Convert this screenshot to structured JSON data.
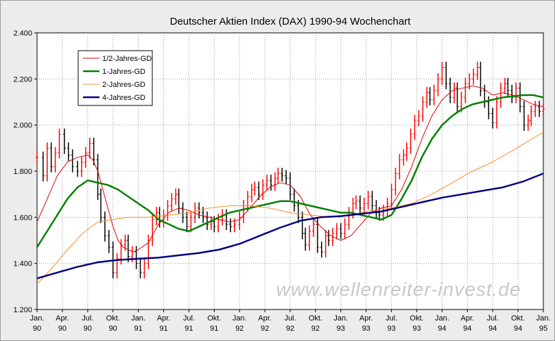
{
  "chart_data": {
    "type": "line",
    "title": "Deutscher Aktien Index (DAX) 1990-94 Wochenchart",
    "watermark": "www.wellenreiter-invest.de",
    "xlabel": "",
    "ylabel": "",
    "ylim": [
      1200,
      2400
    ],
    "yticks": [
      1200,
      1400,
      1600,
      1800,
      2000,
      2200,
      2400
    ],
    "ytick_labels": [
      "1.200",
      "1.400",
      "1.600",
      "1.800",
      "2.000",
      "2.200",
      "2.400"
    ],
    "xlim": [
      1990.0,
      1995.0
    ],
    "xticks": [
      {
        "x": 1990.0,
        "month": "Jan.",
        "year": "90"
      },
      {
        "x": 1990.25,
        "month": "Apr.",
        "year": "90"
      },
      {
        "x": 1990.5,
        "month": "Jul.",
        "year": "90"
      },
      {
        "x": 1990.75,
        "month": "Okt.",
        "year": "90"
      },
      {
        "x": 1991.0,
        "month": "Jan.",
        "year": "91"
      },
      {
        "x": 1991.25,
        "month": "Apr.",
        "year": "91"
      },
      {
        "x": 1991.5,
        "month": "Jul.",
        "year": "91"
      },
      {
        "x": 1991.75,
        "month": "Okt.",
        "year": "91"
      },
      {
        "x": 1992.0,
        "month": "Jan.",
        "year": "92"
      },
      {
        "x": 1992.25,
        "month": "Apr.",
        "year": "92"
      },
      {
        "x": 1992.5,
        "month": "Jul.",
        "year": "92"
      },
      {
        "x": 1992.75,
        "month": "Okt.",
        "year": "92"
      },
      {
        "x": 1993.0,
        "month": "Jan.",
        "year": "93"
      },
      {
        "x": 1993.25,
        "month": "Apr.",
        "year": "93"
      },
      {
        "x": 1993.5,
        "month": "Jul.",
        "year": "93"
      },
      {
        "x": 1993.75,
        "month": "Okt.",
        "year": "93"
      },
      {
        "x": 1994.0,
        "month": "Jan.",
        "year": "94"
      },
      {
        "x": 1994.25,
        "month": "Apr.",
        "year": "94"
      },
      {
        "x": 1994.5,
        "month": "Jul.",
        "year": "94"
      },
      {
        "x": 1994.75,
        "month": "Okt.",
        "year": "94"
      },
      {
        "x": 1995.0,
        "month": "Jan.",
        "year": "95"
      }
    ],
    "grid": true,
    "legend_position": "top-left",
    "price_colors": {
      "up": "#ff0000",
      "down": "#000000"
    },
    "price_series": [
      [
        1990.0,
        1860
      ],
      [
        1990.06,
        1780
      ],
      [
        1990.1,
        1900
      ],
      [
        1990.14,
        1820
      ],
      [
        1990.18,
        1880
      ],
      [
        1990.22,
        1960
      ],
      [
        1990.27,
        1900
      ],
      [
        1990.31,
        1870
      ],
      [
        1990.35,
        1820
      ],
      [
        1990.4,
        1800
      ],
      [
        1990.44,
        1840
      ],
      [
        1990.48,
        1880
      ],
      [
        1990.52,
        1920
      ],
      [
        1990.56,
        1850
      ],
      [
        1990.6,
        1700
      ],
      [
        1990.63,
        1600
      ],
      [
        1990.67,
        1520
      ],
      [
        1990.71,
        1470
      ],
      [
        1990.75,
        1360
      ],
      [
        1990.79,
        1420
      ],
      [
        1990.83,
        1480
      ],
      [
        1990.87,
        1500
      ],
      [
        1990.9,
        1430
      ],
      [
        1990.94,
        1450
      ],
      [
        1990.98,
        1400
      ],
      [
        1991.02,
        1360
      ],
      [
        1991.06,
        1400
      ],
      [
        1991.1,
        1500
      ],
      [
        1991.14,
        1590
      ],
      [
        1991.18,
        1620
      ],
      [
        1991.21,
        1580
      ],
      [
        1991.25,
        1610
      ],
      [
        1991.29,
        1650
      ],
      [
        1991.33,
        1680
      ],
      [
        1991.37,
        1700
      ],
      [
        1991.4,
        1640
      ],
      [
        1991.44,
        1600
      ],
      [
        1991.48,
        1560
      ],
      [
        1991.52,
        1600
      ],
      [
        1991.56,
        1640
      ],
      [
        1991.6,
        1620
      ],
      [
        1991.64,
        1600
      ],
      [
        1991.68,
        1570
      ],
      [
        1991.72,
        1580
      ],
      [
        1991.75,
        1560
      ],
      [
        1991.79,
        1590
      ],
      [
        1991.83,
        1610
      ],
      [
        1991.87,
        1570
      ],
      [
        1991.91,
        1560
      ],
      [
        1991.95,
        1570
      ],
      [
        1992.0,
        1600
      ],
      [
        1992.04,
        1650
      ],
      [
        1992.08,
        1690
      ],
      [
        1992.12,
        1720
      ],
      [
        1992.15,
        1730
      ],
      [
        1992.19,
        1700
      ],
      [
        1992.23,
        1740
      ],
      [
        1992.27,
        1760
      ],
      [
        1992.31,
        1740
      ],
      [
        1992.35,
        1770
      ],
      [
        1992.38,
        1790
      ],
      [
        1992.42,
        1780
      ],
      [
        1992.46,
        1770
      ],
      [
        1992.5,
        1700
      ],
      [
        1992.54,
        1650
      ],
      [
        1992.58,
        1600
      ],
      [
        1992.62,
        1530
      ],
      [
        1992.65,
        1480
      ],
      [
        1992.69,
        1540
      ],
      [
        1992.73,
        1570
      ],
      [
        1992.77,
        1470
      ],
      [
        1992.81,
        1450
      ],
      [
        1992.85,
        1520
      ],
      [
        1992.88,
        1500
      ],
      [
        1992.92,
        1530
      ],
      [
        1992.96,
        1550
      ],
      [
        1993.0,
        1530
      ],
      [
        1993.04,
        1570
      ],
      [
        1993.08,
        1620
      ],
      [
        1993.12,
        1660
      ],
      [
        1993.15,
        1670
      ],
      [
        1993.19,
        1640
      ],
      [
        1993.23,
        1660
      ],
      [
        1993.27,
        1690
      ],
      [
        1993.31,
        1650
      ],
      [
        1993.35,
        1620
      ],
      [
        1993.38,
        1610
      ],
      [
        1993.42,
        1630
      ],
      [
        1993.46,
        1660
      ],
      [
        1993.5,
        1720
      ],
      [
        1993.54,
        1790
      ],
      [
        1993.58,
        1850
      ],
      [
        1993.62,
        1870
      ],
      [
        1993.65,
        1900
      ],
      [
        1993.69,
        1960
      ],
      [
        1993.73,
        2020
      ],
      [
        1993.77,
        2040
      ],
      [
        1993.81,
        2100
      ],
      [
        1993.85,
        2140
      ],
      [
        1993.88,
        2110
      ],
      [
        1993.92,
        2150
      ],
      [
        1993.96,
        2200
      ],
      [
        1994.0,
        2250
      ],
      [
        1994.04,
        2180
      ],
      [
        1994.08,
        2120
      ],
      [
        1994.12,
        2160
      ],
      [
        1994.15,
        2080
      ],
      [
        1994.19,
        2120
      ],
      [
        1994.23,
        2180
      ],
      [
        1994.27,
        2200
      ],
      [
        1994.31,
        2220
      ],
      [
        1994.35,
        2250
      ],
      [
        1994.38,
        2150
      ],
      [
        1994.42,
        2100
      ],
      [
        1994.46,
        2050
      ],
      [
        1994.5,
        2010
      ],
      [
        1994.54,
        2100
      ],
      [
        1994.58,
        2160
      ],
      [
        1994.62,
        2180
      ],
      [
        1994.65,
        2150
      ],
      [
        1994.69,
        2120
      ],
      [
        1994.73,
        2160
      ],
      [
        1994.77,
        2080
      ],
      [
        1994.81,
        2000
      ],
      [
        1994.85,
        2020
      ],
      [
        1994.88,
        2060
      ],
      [
        1994.92,
        2080
      ],
      [
        1994.96,
        2060
      ],
      [
        1995.0,
        2070
      ]
    ],
    "series": [
      {
        "name": "1/2-Jahres-GD",
        "color": "#e00000",
        "width": 1,
        "values": [
          [
            1990.0,
            1580
          ],
          [
            1990.1,
            1680
          ],
          [
            1990.2,
            1780
          ],
          [
            1990.3,
            1840
          ],
          [
            1990.4,
            1860
          ],
          [
            1990.5,
            1870
          ],
          [
            1990.55,
            1850
          ],
          [
            1990.6,
            1800
          ],
          [
            1990.65,
            1720
          ],
          [
            1990.7,
            1640
          ],
          [
            1990.75,
            1560
          ],
          [
            1990.8,
            1500
          ],
          [
            1990.85,
            1470
          ],
          [
            1990.9,
            1460
          ],
          [
            1990.95,
            1450
          ],
          [
            1991.0,
            1460
          ],
          [
            1991.1,
            1490
          ],
          [
            1991.2,
            1570
          ],
          [
            1991.3,
            1620
          ],
          [
            1991.4,
            1640
          ],
          [
            1991.5,
            1630
          ],
          [
            1991.6,
            1610
          ],
          [
            1991.7,
            1600
          ],
          [
            1991.8,
            1590
          ],
          [
            1991.9,
            1580
          ],
          [
            1992.0,
            1590
          ],
          [
            1992.1,
            1640
          ],
          [
            1992.2,
            1690
          ],
          [
            1992.3,
            1730
          ],
          [
            1992.4,
            1750
          ],
          [
            1992.5,
            1740
          ],
          [
            1992.6,
            1690
          ],
          [
            1992.7,
            1610
          ],
          [
            1992.8,
            1560
          ],
          [
            1992.9,
            1520
          ],
          [
            1993.0,
            1500
          ],
          [
            1993.1,
            1520
          ],
          [
            1993.2,
            1570
          ],
          [
            1993.3,
            1620
          ],
          [
            1993.4,
            1640
          ],
          [
            1993.5,
            1650
          ],
          [
            1993.6,
            1720
          ],
          [
            1993.7,
            1820
          ],
          [
            1993.8,
            1940
          ],
          [
            1993.9,
            2040
          ],
          [
            1994.0,
            2110
          ],
          [
            1994.1,
            2150
          ],
          [
            1994.2,
            2160
          ],
          [
            1994.3,
            2170
          ],
          [
            1994.4,
            2160
          ],
          [
            1994.5,
            2130
          ],
          [
            1994.6,
            2140
          ],
          [
            1994.7,
            2130
          ],
          [
            1994.8,
            2110
          ],
          [
            1994.9,
            2090
          ],
          [
            1995.0,
            2080
          ]
        ]
      },
      {
        "name": "1-Jahres-GD",
        "color": "#008000",
        "width": 2.5,
        "values": [
          [
            1990.0,
            1470
          ],
          [
            1990.1,
            1540
          ],
          [
            1990.2,
            1610
          ],
          [
            1990.3,
            1680
          ],
          [
            1990.4,
            1730
          ],
          [
            1990.5,
            1760
          ],
          [
            1990.6,
            1750
          ],
          [
            1990.7,
            1740
          ],
          [
            1990.8,
            1720
          ],
          [
            1990.9,
            1690
          ],
          [
            1991.0,
            1660
          ],
          [
            1991.1,
            1630
          ],
          [
            1991.2,
            1590
          ],
          [
            1991.3,
            1570
          ],
          [
            1991.4,
            1550
          ],
          [
            1991.5,
            1540
          ],
          [
            1991.6,
            1560
          ],
          [
            1991.7,
            1580
          ],
          [
            1991.8,
            1600
          ],
          [
            1991.9,
            1620
          ],
          [
            1992.0,
            1630
          ],
          [
            1992.1,
            1640
          ],
          [
            1992.2,
            1650
          ],
          [
            1992.3,
            1660
          ],
          [
            1992.4,
            1670
          ],
          [
            1992.5,
            1670
          ],
          [
            1992.6,
            1660
          ],
          [
            1992.7,
            1650
          ],
          [
            1992.8,
            1640
          ],
          [
            1992.9,
            1630
          ],
          [
            1993.0,
            1620
          ],
          [
            1993.1,
            1620
          ],
          [
            1993.2,
            1610
          ],
          [
            1993.3,
            1600
          ],
          [
            1993.4,
            1590
          ],
          [
            1993.5,
            1610
          ],
          [
            1993.6,
            1680
          ],
          [
            1993.7,
            1760
          ],
          [
            1993.8,
            1860
          ],
          [
            1993.9,
            1940
          ],
          [
            1994.0,
            2000
          ],
          [
            1994.1,
            2040
          ],
          [
            1994.2,
            2070
          ],
          [
            1994.3,
            2090
          ],
          [
            1994.4,
            2100
          ],
          [
            1994.5,
            2110
          ],
          [
            1994.6,
            2120
          ],
          [
            1994.7,
            2125
          ],
          [
            1994.8,
            2130
          ],
          [
            1994.9,
            2130
          ],
          [
            1995.0,
            2120
          ]
        ]
      },
      {
        "name": "2-Jahres-GD",
        "color": "#ff8c28",
        "width": 1,
        "values": [
          [
            1990.0,
            1310
          ],
          [
            1990.15,
            1380
          ],
          [
            1990.3,
            1460
          ],
          [
            1990.45,
            1530
          ],
          [
            1990.6,
            1580
          ],
          [
            1990.75,
            1590
          ],
          [
            1990.9,
            1600
          ],
          [
            1991.1,
            1600
          ],
          [
            1991.3,
            1610
          ],
          [
            1991.5,
            1620
          ],
          [
            1991.7,
            1640
          ],
          [
            1991.9,
            1650
          ],
          [
            1992.1,
            1650
          ],
          [
            1992.3,
            1640
          ],
          [
            1992.5,
            1620
          ],
          [
            1992.7,
            1610
          ],
          [
            1992.9,
            1600
          ],
          [
            1993.1,
            1610
          ],
          [
            1993.3,
            1630
          ],
          [
            1993.5,
            1640
          ],
          [
            1993.7,
            1660
          ],
          [
            1993.9,
            1700
          ],
          [
            1994.1,
            1750
          ],
          [
            1994.3,
            1800
          ],
          [
            1994.5,
            1840
          ],
          [
            1994.7,
            1890
          ],
          [
            1994.85,
            1930
          ],
          [
            1995.0,
            1970
          ]
        ]
      },
      {
        "name": "4-Jahres-GD",
        "color": "#000080",
        "width": 2.5,
        "values": [
          [
            1990.0,
            1335
          ],
          [
            1990.2,
            1360
          ],
          [
            1990.4,
            1385
          ],
          [
            1990.6,
            1405
          ],
          [
            1990.8,
            1415
          ],
          [
            1991.0,
            1420
          ],
          [
            1991.2,
            1425
          ],
          [
            1991.4,
            1435
          ],
          [
            1991.6,
            1445
          ],
          [
            1991.8,
            1460
          ],
          [
            1992.0,
            1485
          ],
          [
            1992.2,
            1520
          ],
          [
            1992.4,
            1555
          ],
          [
            1992.6,
            1585
          ],
          [
            1992.8,
            1600
          ],
          [
            1993.0,
            1605
          ],
          [
            1993.2,
            1615
          ],
          [
            1993.4,
            1625
          ],
          [
            1993.6,
            1645
          ],
          [
            1993.8,
            1665
          ],
          [
            1994.0,
            1685
          ],
          [
            1994.2,
            1700
          ],
          [
            1994.4,
            1715
          ],
          [
            1994.6,
            1730
          ],
          [
            1994.8,
            1755
          ],
          [
            1995.0,
            1790
          ]
        ]
      }
    ]
  }
}
